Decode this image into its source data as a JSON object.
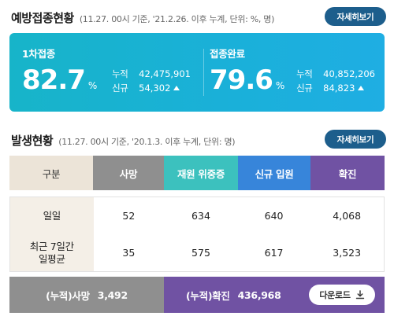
{
  "vaccination": {
    "title": "예방접종현황",
    "subtitle": "(11.27. 00시 기준, '21.2.26. 이후 누계, 단위: %, 명)",
    "detail_label": "자세히보기",
    "first_dose": {
      "label": "1차접종",
      "percent": "82.7",
      "percent_unit": "%",
      "cumulative_label": "누적",
      "cumulative_value": "42,475,901",
      "new_label": "신규",
      "new_value": "54,302",
      "trend_icon": "up-triangle-icon"
    },
    "completed": {
      "label": "접종완료",
      "percent": "79.6",
      "percent_unit": "%",
      "cumulative_label": "누적",
      "cumulative_value": "40,852,206",
      "new_label": "신규",
      "new_value": "84,823",
      "trend_icon": "up-triangle-icon"
    }
  },
  "outbreak": {
    "title": "발생현황",
    "subtitle": "(11.27. 00시 기준, '20.1.3. 이후 누계, 단위: 명)",
    "detail_label": "자세히보기",
    "table": {
      "headers": [
        "구분",
        "사망",
        "재원 위중증",
        "신규 입원",
        "확진"
      ],
      "rows": [
        {
          "label": "일일",
          "values": [
            "52",
            "634",
            "640",
            "4,068"
          ]
        },
        {
          "label": "최근 7일간\n일평균",
          "label_line1": "최근 7일간",
          "label_line2": "일평균",
          "values": [
            "35",
            "575",
            "617",
            "3,523"
          ]
        }
      ]
    },
    "summary": {
      "death_label": "(누적)사망",
      "death_value": "3,492",
      "confirmed_label": "(누적)확진",
      "confirmed_value": "436,968",
      "download_label": "다운로드"
    }
  },
  "colors": {
    "vacc_card": "#17b4c9",
    "detail_button": "#1d5e8c",
    "death": "#8f8f8f",
    "icu": "#3cc1be",
    "admission": "#3785da",
    "confirmed": "#7052a3",
    "category": "#ece4d8"
  }
}
